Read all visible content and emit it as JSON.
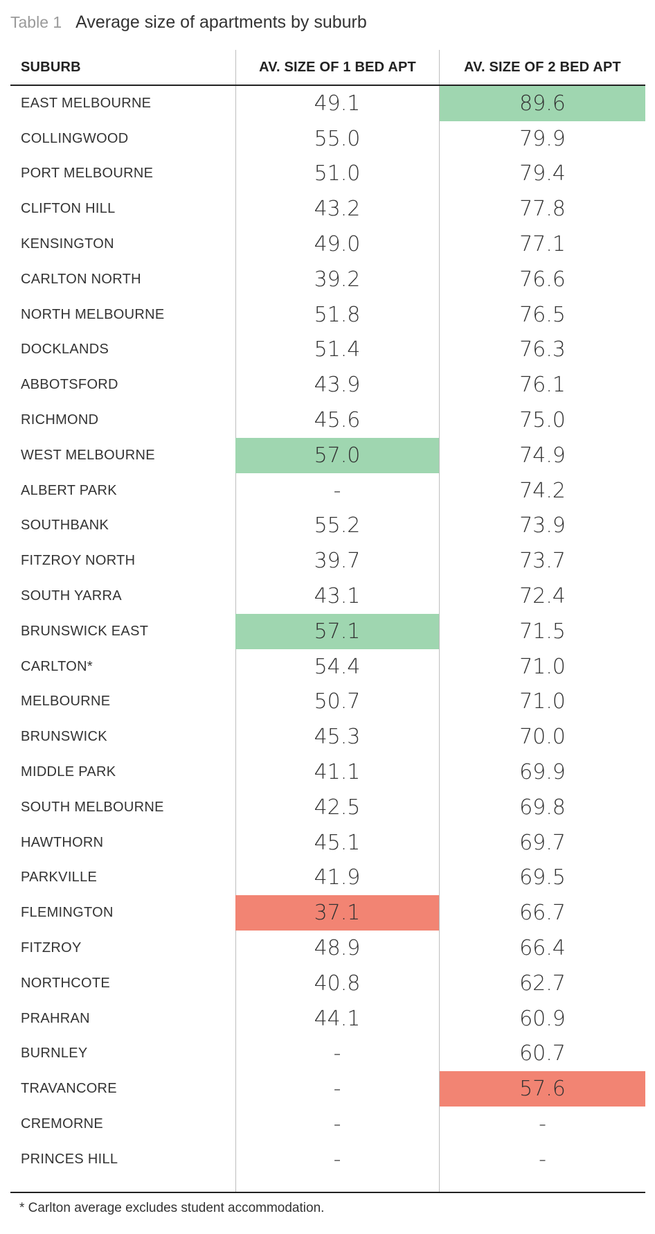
{
  "title": {
    "label": "Table 1",
    "text": "Average size of apartments by suburb"
  },
  "colors": {
    "green_highlight": "#9fd6b0",
    "red_highlight": "#f28473"
  },
  "columns": [
    "SUBURB",
    "AV. SIZE OF 1 BED APT",
    "AV. SIZE OF 2 BED APT"
  ],
  "rows": [
    {
      "suburb": "EAST MELBOURNE",
      "one_bed": "49.1",
      "two_bed": "89.6",
      "one_hl": "",
      "two_hl": "green"
    },
    {
      "suburb": "COLLINGWOOD",
      "one_bed": "55.0",
      "two_bed": "79.9",
      "one_hl": "",
      "two_hl": ""
    },
    {
      "suburb": "PORT MELBOURNE",
      "one_bed": "51.0",
      "two_bed": "79.4",
      "one_hl": "",
      "two_hl": ""
    },
    {
      "suburb": "CLIFTON HILL",
      "one_bed": "43.2",
      "two_bed": "77.8",
      "one_hl": "",
      "two_hl": ""
    },
    {
      "suburb": "KENSINGTON",
      "one_bed": "49.0",
      "two_bed": "77.1",
      "one_hl": "",
      "two_hl": ""
    },
    {
      "suburb": "CARLTON NORTH",
      "one_bed": "39.2",
      "two_bed": "76.6",
      "one_hl": "",
      "two_hl": ""
    },
    {
      "suburb": "NORTH MELBOURNE",
      "one_bed": "51.8",
      "two_bed": "76.5",
      "one_hl": "",
      "two_hl": ""
    },
    {
      "suburb": "DOCKLANDS",
      "one_bed": "51.4",
      "two_bed": "76.3",
      "one_hl": "",
      "two_hl": ""
    },
    {
      "suburb": "ABBOTSFORD",
      "one_bed": "43.9",
      "two_bed": "76.1",
      "one_hl": "",
      "two_hl": ""
    },
    {
      "suburb": "RICHMOND",
      "one_bed": "45.6",
      "two_bed": "75.0",
      "one_hl": "",
      "two_hl": ""
    },
    {
      "suburb": "WEST MELBOURNE",
      "one_bed": "57.0",
      "two_bed": "74.9",
      "one_hl": "green",
      "two_hl": ""
    },
    {
      "suburb": "ALBERT PARK",
      "one_bed": "-",
      "two_bed": "74.2",
      "one_hl": "",
      "two_hl": ""
    },
    {
      "suburb": "SOUTHBANK",
      "one_bed": "55.2",
      "two_bed": "73.9",
      "one_hl": "",
      "two_hl": ""
    },
    {
      "suburb": "FITZROY NORTH",
      "one_bed": "39.7",
      "two_bed": "73.7",
      "one_hl": "",
      "two_hl": ""
    },
    {
      "suburb": "SOUTH YARRA",
      "one_bed": "43.1",
      "two_bed": "72.4",
      "one_hl": "",
      "two_hl": ""
    },
    {
      "suburb": "BRUNSWICK EAST",
      "one_bed": "57.1",
      "two_bed": "71.5",
      "one_hl": "green",
      "two_hl": ""
    },
    {
      "suburb": "CARLTON*",
      "one_bed": "54.4",
      "two_bed": "71.0",
      "one_hl": "",
      "two_hl": ""
    },
    {
      "suburb": "MELBOURNE",
      "one_bed": "50.7",
      "two_bed": "71.0",
      "one_hl": "",
      "two_hl": ""
    },
    {
      "suburb": "BRUNSWICK",
      "one_bed": "45.3",
      "two_bed": "70.0",
      "one_hl": "",
      "two_hl": ""
    },
    {
      "suburb": "MIDDLE PARK",
      "one_bed": "41.1",
      "two_bed": "69.9",
      "one_hl": "",
      "two_hl": ""
    },
    {
      "suburb": "SOUTH MELBOURNE",
      "one_bed": "42.5",
      "two_bed": "69.8",
      "one_hl": "",
      "two_hl": ""
    },
    {
      "suburb": "HAWTHORN",
      "one_bed": "45.1",
      "two_bed": "69.7",
      "one_hl": "",
      "two_hl": ""
    },
    {
      "suburb": "PARKVILLE",
      "one_bed": "41.9",
      "two_bed": "69.5",
      "one_hl": "",
      "two_hl": ""
    },
    {
      "suburb": "FLEMINGTON",
      "one_bed": "37.1",
      "two_bed": "66.7",
      "one_hl": "red",
      "two_hl": ""
    },
    {
      "suburb": "FITZROY",
      "one_bed": "48.9",
      "two_bed": "66.4",
      "one_hl": "",
      "two_hl": ""
    },
    {
      "suburb": "NORTHCOTE",
      "one_bed": "40.8",
      "two_bed": "62.7",
      "one_hl": "",
      "two_hl": ""
    },
    {
      "suburb": "PRAHRAN",
      "one_bed": "44.1",
      "two_bed": "60.9",
      "one_hl": "",
      "two_hl": ""
    },
    {
      "suburb": "BURNLEY",
      "one_bed": "-",
      "two_bed": "60.7",
      "one_hl": "",
      "two_hl": ""
    },
    {
      "suburb": "TRAVANCORE",
      "one_bed": "-",
      "two_bed": "57.6",
      "one_hl": "",
      "two_hl": "red"
    },
    {
      "suburb": "CREMORNE",
      "one_bed": "-",
      "two_bed": "-",
      "one_hl": "",
      "two_hl": ""
    },
    {
      "suburb": "PRINCES HILL",
      "one_bed": "-",
      "two_bed": "-",
      "one_hl": "",
      "two_hl": ""
    }
  ],
  "footnote": "* Carlton average excludes student accommodation."
}
